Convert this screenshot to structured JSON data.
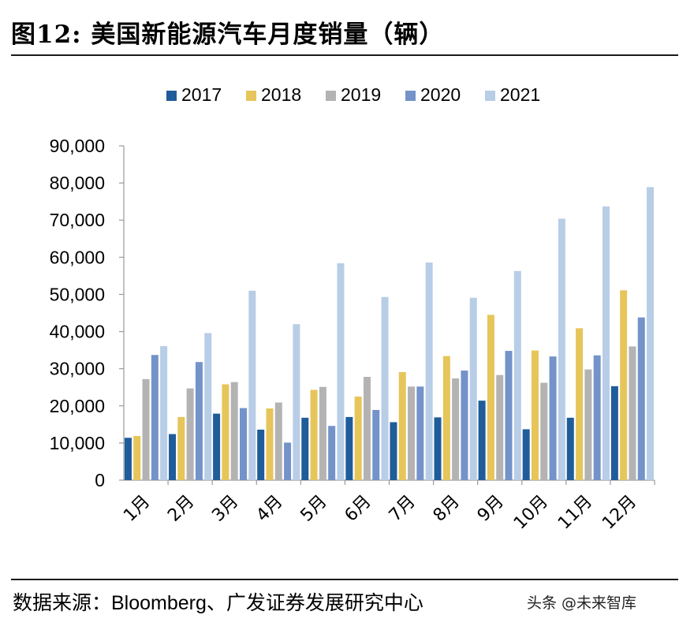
{
  "header": {
    "title": "图12: 美国新能源汽车月度销量（辆）"
  },
  "footer": {
    "source": "数据来源：Bloomberg、广发证券发展研究中心",
    "watermark": "头条 @未来智库"
  },
  "chart_data": {
    "type": "bar",
    "categories": [
      "1月",
      "2月",
      "3月",
      "4月",
      "5月",
      "6月",
      "7月",
      "8月",
      "9月",
      "10月",
      "11月",
      "12月"
    ],
    "series": [
      {
        "name": "2017",
        "color": "#1f5c99",
        "values": [
          11400,
          12400,
          17900,
          13600,
          16800,
          17000,
          15600,
          16900,
          21400,
          13700,
          16800,
          25300
        ]
      },
      {
        "name": "2018",
        "color": "#e6c55a",
        "values": [
          11900,
          17000,
          25800,
          19300,
          24300,
          22500,
          29100,
          33400,
          44500,
          34900,
          40900,
          51100
        ]
      },
      {
        "name": "2019",
        "color": "#b3b3b3",
        "values": [
          27200,
          24700,
          26400,
          20900,
          25100,
          27800,
          25200,
          27400,
          28300,
          26200,
          29800,
          36000
        ]
      },
      {
        "name": "2020",
        "color": "#7393c9",
        "values": [
          33700,
          31800,
          19400,
          10100,
          14600,
          18900,
          25200,
          29500,
          34800,
          33300,
          33600,
          43800
        ]
      },
      {
        "name": "2021",
        "color": "#b8cde6",
        "values": [
          36100,
          39600,
          51000,
          42000,
          58400,
          49300,
          58600,
          49100,
          56300,
          70400,
          73700,
          78900
        ]
      }
    ],
    "ylim": [
      0,
      90000
    ],
    "yticks": [
      0,
      10000,
      20000,
      30000,
      40000,
      50000,
      60000,
      70000,
      80000,
      90000
    ],
    "ytick_labels": [
      "0",
      "10,000",
      "20,000",
      "30,000",
      "40,000",
      "50,000",
      "60,000",
      "70,000",
      "80,000",
      "90,000"
    ],
    "legend": "top",
    "grid": false,
    "xlabel": "",
    "ylabel": ""
  }
}
